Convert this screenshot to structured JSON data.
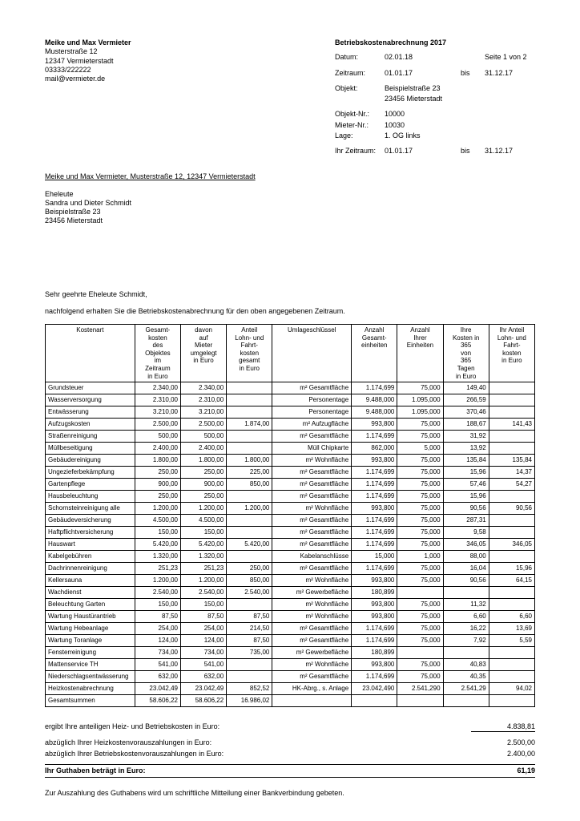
{
  "sender": {
    "name": "Meike und Max Vermieter",
    "street": "Musterstraße 12",
    "city": "12347 Vermieterstadt",
    "phone": "03333/222222",
    "email": "mail@vermieter.de"
  },
  "header": {
    "title": "Betriebskostenabrechnung 2017",
    "date_label": "Datum:",
    "date": "02.01.18",
    "page_label": "Seite 1 von 2",
    "period_label": "Zeitraum:",
    "period_from": "01.01.17",
    "bis": "bis",
    "period_to": "31.12.17",
    "object_label": "Objekt:",
    "object_l1": "Beispielstraße 23",
    "object_l2": "23456 Mieterstadt",
    "objnr_label": "Objekt-Nr.:",
    "objnr": "10000",
    "mieternr_label": "Mieter-Nr.:",
    "mieternr": "10030",
    "lage_label": "Lage:",
    "lage": "1. OG links",
    "ihrz_label": "Ihr Zeitraum:",
    "ihrz_from": "01.01.17",
    "ihrz_to": "31.12.17"
  },
  "sender_line": "Meike und Max Vermieter, Musterstraße 12, 12347 Vermieterstadt",
  "recipient": {
    "l1": "Eheleute",
    "l2": "Sandra und Dieter Schmidt",
    "l3": "Beispielstraße 23",
    "l4": "23456 Mieterstadt"
  },
  "greeting": "Sehr geehrte Eheleute Schmidt,",
  "intro": "nachfolgend erhalten Sie die Betriebskostenabrechnung für den oben angegebenen Zeitraum.",
  "columns": {
    "c1": "Kostenart",
    "c2": "Gesamt-\nkosten\ndes\nObjektes\nim\nZeitraum\nin Euro",
    "c3": "davon\nauf\nMieter\numgelegt\nin Euro",
    "c4": "Anteil\nLohn- und\nFahrt-\nkosten\ngesamt\nin Euro",
    "c5": "Umlageschlüssel",
    "c6": "Anzahl\nGesamt-\neinheiten",
    "c7": "Anzahl\nIhrer\nEinheiten",
    "c8": "Ihre\nKosten in\n365\nvon\n365\nTagen\nin Euro",
    "c9": "Ihr Anteil\nLohn- und\nFahrt-\nkosten\nin Euro"
  },
  "rows": [
    {
      "n": "Grundsteuer",
      "g": "2.340,00",
      "m": "2.340,00",
      "l": "",
      "s": "m² Gesamtfläche",
      "ge": "1.174,699",
      "ie": "75,000",
      "ik": "149,40",
      "il": ""
    },
    {
      "n": "Wasserversorgung",
      "g": "2.310,00",
      "m": "2.310,00",
      "l": "",
      "s": "Personentage",
      "ge": "9.488,000",
      "ie": "1.095,000",
      "ik": "266,59",
      "il": ""
    },
    {
      "n": "Entwässerung",
      "g": "3.210,00",
      "m": "3.210,00",
      "l": "",
      "s": "Personentage",
      "ge": "9.488,000",
      "ie": "1.095,000",
      "ik": "370,46",
      "il": ""
    },
    {
      "n": "Aufzugskosten",
      "g": "2.500,00",
      "m": "2.500,00",
      "l": "1.874,00",
      "s": "m² Aufzugfläche",
      "ge": "993,800",
      "ie": "75,000",
      "ik": "188,67",
      "il": "141,43"
    },
    {
      "n": "Straßenreinigung",
      "g": "500,00",
      "m": "500,00",
      "l": "",
      "s": "m² Gesamtfläche",
      "ge": "1.174,699",
      "ie": "75,000",
      "ik": "31,92",
      "il": ""
    },
    {
      "n": "Müllbeseitigung",
      "g": "2.400,00",
      "m": "2.400,00",
      "l": "",
      "s": "Müll Chipkarte",
      "ge": "862,000",
      "ie": "5,000",
      "ik": "13,92",
      "il": ""
    },
    {
      "n": "Gebäudereinigung",
      "g": "1.800,00",
      "m": "1.800,00",
      "l": "1.800,00",
      "s": "m² Wohnfläche",
      "ge": "993,800",
      "ie": "75,000",
      "ik": "135,84",
      "il": "135,84"
    },
    {
      "n": "Ungezieferbekämpfung",
      "g": "250,00",
      "m": "250,00",
      "l": "225,00",
      "s": "m² Gesamtfläche",
      "ge": "1.174,699",
      "ie": "75,000",
      "ik": "15,96",
      "il": "14,37"
    },
    {
      "n": "Gartenpflege",
      "g": "900,00",
      "m": "900,00",
      "l": "850,00",
      "s": "m² Gesamtfläche",
      "ge": "1.174,699",
      "ie": "75,000",
      "ik": "57,46",
      "il": "54,27"
    },
    {
      "n": "Hausbeleuchtung",
      "g": "250,00",
      "m": "250,00",
      "l": "",
      "s": "m² Gesamtfläche",
      "ge": "1.174,699",
      "ie": "75,000",
      "ik": "15,96",
      "il": ""
    },
    {
      "n": "Schornsteinreinigung alle",
      "g": "1.200,00",
      "m": "1.200,00",
      "l": "1.200,00",
      "s": "m² Wohnfläche",
      "ge": "993,800",
      "ie": "75,000",
      "ik": "90,56",
      "il": "90,56"
    },
    {
      "n": "Gebäudeversicherung",
      "g": "4.500,00",
      "m": "4.500,00",
      "l": "",
      "s": "m² Gesamtfläche",
      "ge": "1.174,699",
      "ie": "75,000",
      "ik": "287,31",
      "il": ""
    },
    {
      "n": "Haftpflichtversicherung",
      "g": "150,00",
      "m": "150,00",
      "l": "",
      "s": "m² Gesamtfläche",
      "ge": "1.174,699",
      "ie": "75,000",
      "ik": "9,58",
      "il": ""
    },
    {
      "n": "Hauswart",
      "g": "5.420,00",
      "m": "5.420,00",
      "l": "5.420,00",
      "s": "m² Gesamtfläche",
      "ge": "1.174,699",
      "ie": "75,000",
      "ik": "346,05",
      "il": "346,05"
    },
    {
      "n": "Kabelgebühren",
      "g": "1.320,00",
      "m": "1.320,00",
      "l": "",
      "s": "Kabelanschlüsse",
      "ge": "15,000",
      "ie": "1,000",
      "ik": "88,00",
      "il": ""
    },
    {
      "n": "Dachrinnenreinigung",
      "g": "251,23",
      "m": "251,23",
      "l": "250,00",
      "s": "m² Gesamtfläche",
      "ge": "1.174,699",
      "ie": "75,000",
      "ik": "16,04",
      "il": "15,96"
    },
    {
      "n": "Kellersauna",
      "g": "1.200,00",
      "m": "1.200,00",
      "l": "850,00",
      "s": "m² Wohnfläche",
      "ge": "993,800",
      "ie": "75,000",
      "ik": "90,56",
      "il": "64,15"
    },
    {
      "n": "Wachdienst",
      "g": "2.540,00",
      "m": "2.540,00",
      "l": "2.540,00",
      "s": "m² Gewerbefläche",
      "ge": "180,899",
      "ie": "",
      "ik": "",
      "il": ""
    },
    {
      "n": "Beleuchtung Garten",
      "g": "150,00",
      "m": "150,00",
      "l": "",
      "s": "m² Wohnfläche",
      "ge": "993,800",
      "ie": "75,000",
      "ik": "11,32",
      "il": ""
    },
    {
      "n": "Wartung Haustürantrieb",
      "g": "87,50",
      "m": "87,50",
      "l": "87,50",
      "s": "m² Wohnfläche",
      "ge": "993,800",
      "ie": "75,000",
      "ik": "6,60",
      "il": "6,60"
    },
    {
      "n": "Wartung Hebeanlage",
      "g": "254,00",
      "m": "254,00",
      "l": "214,50",
      "s": "m² Gesamtfläche",
      "ge": "1.174,699",
      "ie": "75,000",
      "ik": "16,22",
      "il": "13,69"
    },
    {
      "n": "Wartung Toranlage",
      "g": "124,00",
      "m": "124,00",
      "l": "87,50",
      "s": "m² Gesamtfläche",
      "ge": "1.174,699",
      "ie": "75,000",
      "ik": "7,92",
      "il": "5,59"
    },
    {
      "n": "Fensterreinigung",
      "g": "734,00",
      "m": "734,00",
      "l": "735,00",
      "s": "m² Gewerbefläche",
      "ge": "180,899",
      "ie": "",
      "ik": "",
      "il": ""
    },
    {
      "n": "Mattenservice TH",
      "g": "541,00",
      "m": "541,00",
      "l": "",
      "s": "m² Wohnfläche",
      "ge": "993,800",
      "ie": "75,000",
      "ik": "40,83",
      "il": ""
    },
    {
      "n": "Niederschlagsentwässerung",
      "g": "632,00",
      "m": "632,00",
      "l": "",
      "s": "m² Gesamtfläche",
      "ge": "1.174,699",
      "ie": "75,000",
      "ik": "40,35",
      "il": ""
    },
    {
      "n": "Heizkostenabrechnung",
      "g": "23.042,49",
      "m": "23.042,49",
      "l": "852,52",
      "s": "HK-Abrg., s. Anlage",
      "ge": "23.042,490",
      "ie": "2.541,290",
      "ik": "2.541,29",
      "il": "94,02"
    }
  ],
  "sum_row": {
    "n": "Gesamtsummen",
    "g": "58.606,22",
    "m": "58.606,22",
    "l": "16.986,02",
    "s": "",
    "ge": "",
    "ie": "",
    "ik": "",
    "il": ""
  },
  "summary": {
    "line1_label": "ergibt Ihre anteiligen Heiz- und Betriebskosten in Euro:",
    "line1_val": "4.838,81",
    "line2_label": "abzüglich Ihrer Heizkostenvorauszahlungen in Euro:",
    "line2_val": "2.500,00",
    "line3_label": "abzüglich Ihrer Betriebskostenvorauszahlungen in Euro:",
    "line3_val": "2.400,00",
    "line4_label": "Ihr Guthaben beträgt in Euro:",
    "line4_val": "61,19"
  },
  "footer": "Zur Auszahlung des Guthabens wird um schriftliche Mitteilung einer Bankverbindung gebeten."
}
